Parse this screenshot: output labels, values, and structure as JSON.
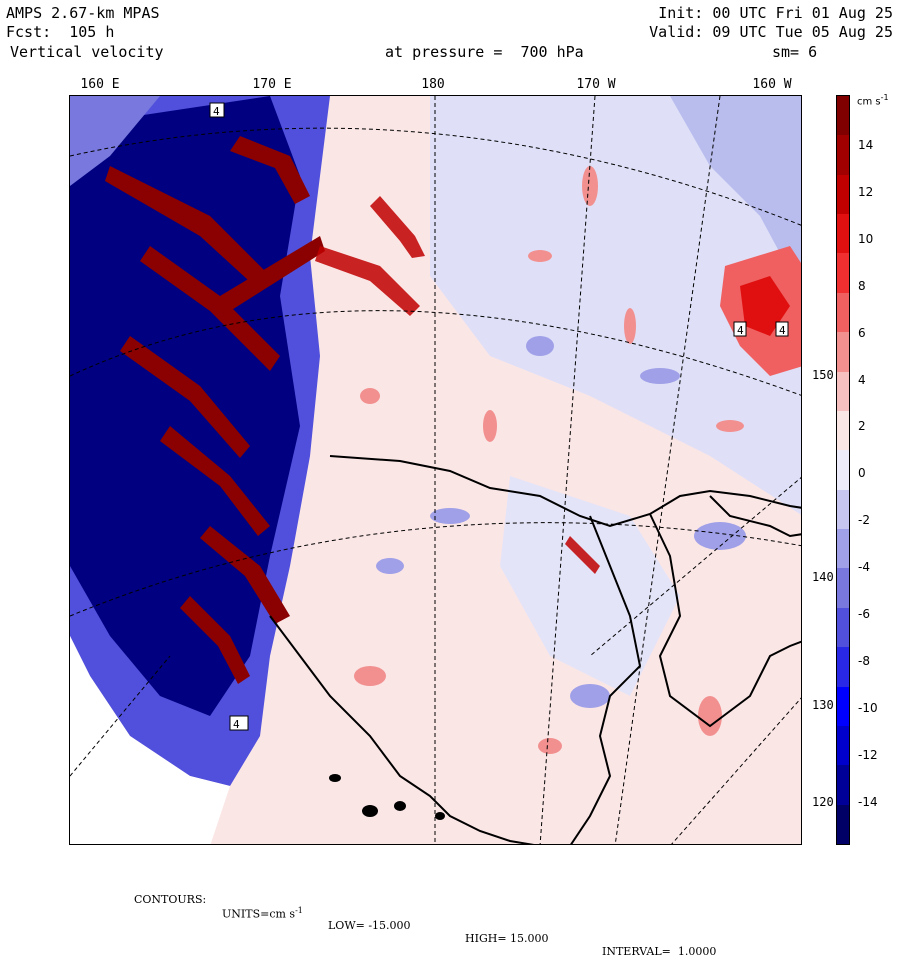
{
  "header": {
    "model": "AMPS 2.67-km MPAS",
    "forecast": "Fcst:  105 h",
    "field": "Vertical velocity",
    "init": "Init: 00 UTC Fri 01 Aug 25",
    "valid": "Valid: 09 UTC Tue 05 Aug 25",
    "pressure_label": "at pressure =  700 hPa",
    "smoothing": "sm= 6"
  },
  "top_longitude_labels": [
    "160 E",
    "170 E",
    "180",
    "170 W",
    "160 W"
  ],
  "right_longitude_labels": [
    "150 W",
    "140 W",
    "130 W",
    "120 W"
  ],
  "colorbar": {
    "units": "cm s",
    "units_exp": "-1",
    "tick_labels": [
      "14",
      "12",
      "10",
      "8",
      "6",
      "4",
      "2",
      "0",
      "-2",
      "-4",
      "-6",
      "-8",
      "-10",
      "-12",
      "-14"
    ],
    "colors": [
      "#800000",
      "#a00000",
      "#c00000",
      "#e01010",
      "#f03030",
      "#f06060",
      "#f29090",
      "#f6c0c0",
      "#fbe6e6",
      "#ececfa",
      "#c6c6f0",
      "#a0a0e8",
      "#7878de",
      "#5050dc",
      "#2828e6",
      "#0000ff",
      "#0000cc",
      "#000099",
      "#000066"
    ]
  },
  "map": {
    "contour_marker_label": "4",
    "highlight_colors": {
      "positive": "#8b0000",
      "negative": "#00008b",
      "land_line": "#000000"
    }
  },
  "footer": {
    "contours": "CONTOURS:",
    "units": "UNITS=cm s",
    "units_exp": "-1",
    "low": "LOW= -15.000",
    "high": "HIGH= 15.000",
    "interval": "INTERVAL=  1.0000"
  }
}
